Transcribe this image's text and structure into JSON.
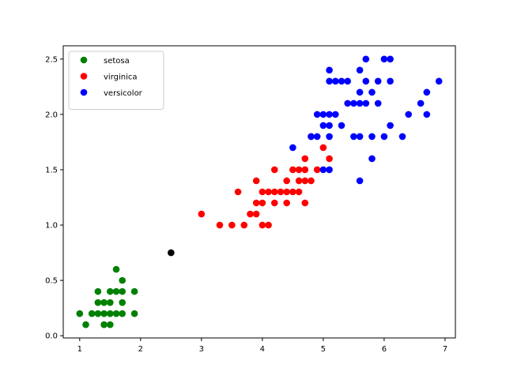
{
  "chart_data": {
    "type": "scatter",
    "title": "",
    "xlabel": "",
    "ylabel": "",
    "xlim": [
      0.73,
      7.17
    ],
    "ylim": [
      -0.02,
      2.62
    ],
    "x_ticks": [
      1,
      2,
      3,
      4,
      5,
      6,
      7
    ],
    "y_ticks": [
      0.0,
      0.5,
      1.0,
      1.5,
      2.0,
      2.5
    ],
    "x_tick_labels": [
      "1",
      "2",
      "3",
      "4",
      "5",
      "6",
      "7"
    ],
    "y_tick_labels": [
      "0.0",
      "0.5",
      "1.0",
      "1.5",
      "2.0",
      "2.5"
    ],
    "grid": false,
    "legend": {
      "position": "top-left"
    },
    "series": [
      {
        "name": "setosa",
        "color": "#008000",
        "points": [
          [
            1.0,
            0.2
          ],
          [
            1.1,
            0.1
          ],
          [
            1.2,
            0.2
          ],
          [
            1.3,
            0.2
          ],
          [
            1.3,
            0.3
          ],
          [
            1.3,
            0.4
          ],
          [
            1.4,
            0.1
          ],
          [
            1.4,
            0.2
          ],
          [
            1.4,
            0.3
          ],
          [
            1.5,
            0.1
          ],
          [
            1.5,
            0.2
          ],
          [
            1.5,
            0.3
          ],
          [
            1.5,
            0.4
          ],
          [
            1.6,
            0.2
          ],
          [
            1.6,
            0.4
          ],
          [
            1.6,
            0.6
          ],
          [
            1.7,
            0.2
          ],
          [
            1.7,
            0.3
          ],
          [
            1.7,
            0.4
          ],
          [
            1.7,
            0.5
          ],
          [
            1.9,
            0.2
          ],
          [
            1.9,
            0.4
          ]
        ]
      },
      {
        "name": "virginica",
        "color": "#ff0000",
        "points": [
          [
            3.0,
            1.1
          ],
          [
            3.3,
            1.0
          ],
          [
            3.5,
            1.0
          ],
          [
            3.6,
            1.3
          ],
          [
            3.7,
            1.0
          ],
          [
            3.8,
            1.1
          ],
          [
            3.9,
            1.1
          ],
          [
            3.9,
            1.2
          ],
          [
            3.9,
            1.4
          ],
          [
            4.0,
            1.0
          ],
          [
            4.0,
            1.2
          ],
          [
            4.0,
            1.3
          ],
          [
            4.1,
            1.0
          ],
          [
            4.1,
            1.3
          ],
          [
            4.2,
            1.2
          ],
          [
            4.2,
            1.3
          ],
          [
            4.2,
            1.5
          ],
          [
            4.3,
            1.3
          ],
          [
            4.4,
            1.2
          ],
          [
            4.4,
            1.3
          ],
          [
            4.4,
            1.4
          ],
          [
            4.5,
            1.3
          ],
          [
            4.5,
            1.5
          ],
          [
            4.6,
            1.3
          ],
          [
            4.6,
            1.4
          ],
          [
            4.6,
            1.5
          ],
          [
            4.7,
            1.2
          ],
          [
            4.7,
            1.4
          ],
          [
            4.7,
            1.5
          ],
          [
            4.7,
            1.6
          ],
          [
            4.8,
            1.4
          ],
          [
            4.8,
            1.8
          ],
          [
            4.9,
            1.5
          ],
          [
            5.0,
            1.7
          ],
          [
            5.1,
            1.6
          ]
        ]
      },
      {
        "name": "versicolor",
        "color": "#0000ff",
        "points": [
          [
            4.5,
            1.7
          ],
          [
            4.8,
            1.8
          ],
          [
            4.9,
            1.8
          ],
          [
            4.9,
            2.0
          ],
          [
            5.0,
            1.5
          ],
          [
            5.0,
            1.9
          ],
          [
            5.0,
            2.0
          ],
          [
            5.1,
            1.5
          ],
          [
            5.1,
            1.8
          ],
          [
            5.1,
            1.9
          ],
          [
            5.1,
            2.0
          ],
          [
            5.1,
            2.3
          ],
          [
            5.1,
            2.4
          ],
          [
            5.2,
            2.0
          ],
          [
            5.2,
            2.3
          ],
          [
            5.3,
            1.9
          ],
          [
            5.3,
            2.3
          ],
          [
            5.4,
            2.1
          ],
          [
            5.4,
            2.3
          ],
          [
            5.5,
            1.8
          ],
          [
            5.5,
            2.1
          ],
          [
            5.6,
            1.4
          ],
          [
            5.6,
            1.8
          ],
          [
            5.6,
            2.1
          ],
          [
            5.6,
            2.2
          ],
          [
            5.6,
            2.4
          ],
          [
            5.7,
            2.1
          ],
          [
            5.7,
            2.3
          ],
          [
            5.7,
            2.5
          ],
          [
            5.8,
            1.6
          ],
          [
            5.8,
            1.8
          ],
          [
            5.8,
            2.2
          ],
          [
            5.9,
            2.1
          ],
          [
            5.9,
            2.3
          ],
          [
            6.0,
            1.8
          ],
          [
            6.0,
            2.5
          ],
          [
            6.1,
            1.9
          ],
          [
            6.1,
            2.3
          ],
          [
            6.1,
            2.5
          ],
          [
            6.3,
            1.8
          ],
          [
            6.4,
            2.0
          ],
          [
            6.6,
            2.1
          ],
          [
            6.7,
            2.0
          ],
          [
            6.7,
            2.2
          ],
          [
            6.9,
            2.3
          ]
        ]
      },
      {
        "name": "",
        "color": "#000000",
        "points": [
          [
            2.5,
            0.75
          ]
        ]
      }
    ]
  }
}
